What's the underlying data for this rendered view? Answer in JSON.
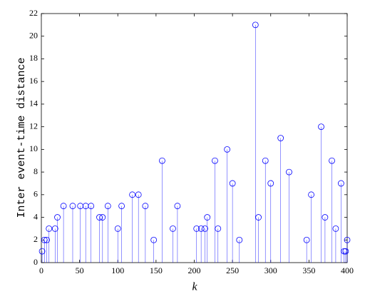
{
  "chart_data": {
    "type": "stem",
    "xlabel": "k",
    "ylabel": "Inter event-time distance",
    "x": [
      1,
      4,
      7,
      10,
      18,
      21,
      29,
      41,
      51,
      58,
      65,
      76,
      80,
      87,
      100,
      105,
      119,
      127,
      136,
      147,
      158,
      172,
      178,
      203,
      209,
      214,
      217,
      227,
      231,
      243,
      250,
      259,
      280,
      284,
      293,
      300,
      313,
      324,
      347,
      353,
      366,
      371,
      380,
      385,
      392,
      396,
      398,
      400
    ],
    "values": [
      1,
      2,
      2,
      3,
      3,
      4,
      5,
      5,
      5,
      5,
      5,
      4,
      4,
      5,
      3,
      5,
      6,
      6,
      5,
      2,
      9,
      3,
      5,
      3,
      3,
      3,
      4,
      9,
      3,
      10,
      7,
      2,
      21,
      4,
      9,
      7,
      11,
      8,
      2,
      6,
      12,
      4,
      9,
      3,
      7,
      1,
      1,
      2
    ],
    "color": "#0000ff",
    "xlim": [
      0,
      400
    ],
    "ylim": [
      0,
      22
    ],
    "xticks": [
      0,
      50,
      100,
      150,
      200,
      250,
      300,
      350,
      400
    ],
    "yticks": [
      0,
      2,
      4,
      6,
      8,
      10,
      12,
      14,
      16,
      18,
      20,
      22
    ]
  }
}
